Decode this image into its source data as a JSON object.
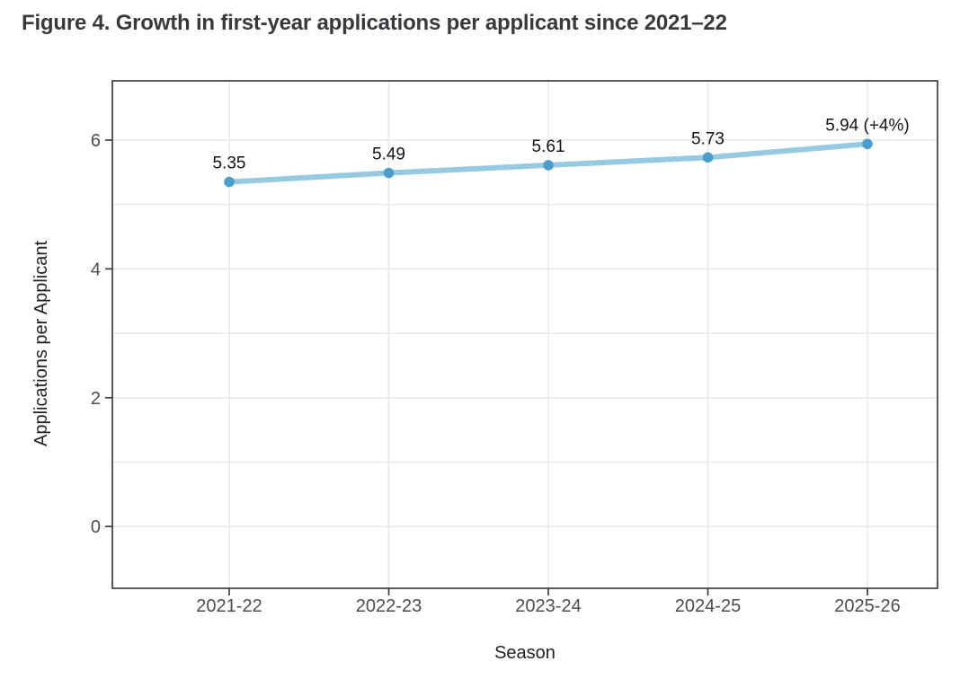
{
  "figure": {
    "title": "Figure 4. Growth in first-year applications per applicant since 2021–22"
  },
  "chart_data": {
    "type": "line",
    "title": "Figure 4. Growth in first-year applications per applicant since 2021–22",
    "xlabel": "Season",
    "ylabel": "Applications per Applicant",
    "categories": [
      "2021-22",
      "2022-23",
      "2023-24",
      "2024-25",
      "2025-26"
    ],
    "series": [
      {
        "name": "Applications per Applicant",
        "values": [
          5.35,
          5.49,
          5.61,
          5.73,
          5.94
        ]
      }
    ],
    "point_labels": [
      "5.35",
      "5.49",
      "5.61",
      "5.73",
      "5.94 (+4%)"
    ],
    "y_axis": {
      "tick_labels": [
        "0",
        "2",
        "4",
        "6"
      ],
      "ticks": [
        0,
        2,
        4,
        6
      ],
      "minor_ticks": [
        1,
        3,
        5
      ],
      "range": [
        -0.96,
        6.92
      ]
    },
    "grid": "major-and-minor-horizontal, major-vertical",
    "legend_position": "none",
    "colors": {
      "line": "#96c9e2",
      "point": "#4a9ecb",
      "grid": "#e9e9ed",
      "panel_border": "#333333",
      "tick": "#333333",
      "tick_label": "#4d4d4d",
      "axis_title": "#1f1f1f",
      "data_label": "#141414",
      "title": "#39393d",
      "background": "#ffffff"
    }
  }
}
